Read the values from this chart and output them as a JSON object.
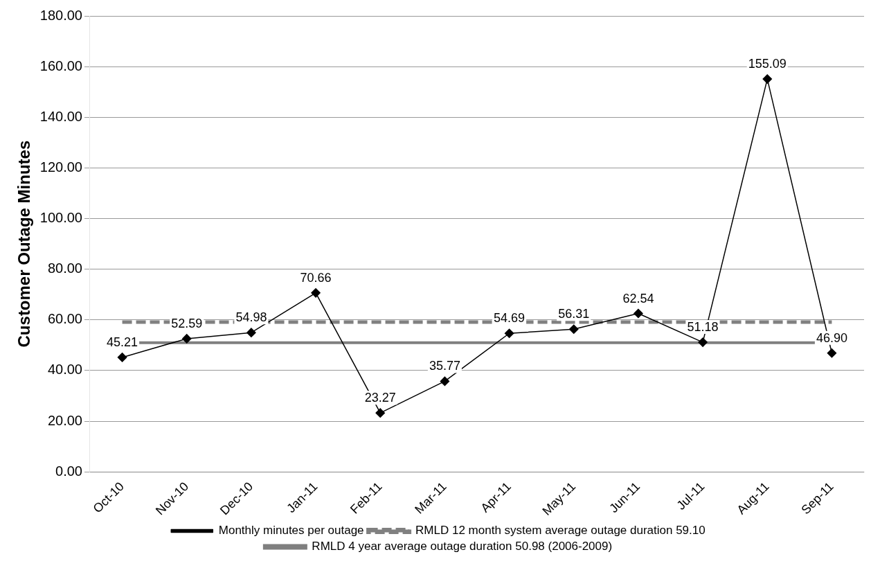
{
  "chart_data": {
    "type": "line",
    "ylabel": "Customer Outage Minutes",
    "categories": [
      "Oct-10",
      "Nov-10",
      "Dec-10",
      "Jan-11",
      "Feb-11",
      "Mar-11",
      "Apr-11",
      "May-11",
      "Jun-11",
      "Jul-11",
      "Aug-11",
      "Sep-11"
    ],
    "series": [
      {
        "name": "Monthly minutes per outage",
        "color": "#000000",
        "values": [
          45.21,
          52.59,
          54.98,
          70.66,
          23.27,
          35.77,
          54.69,
          56.31,
          62.54,
          51.18,
          155.09,
          46.9
        ],
        "value_labels": [
          "45.21",
          "52.59",
          "54.98",
          "70.66",
          "23.27",
          "35.77",
          "54.69",
          "56.31",
          "62.54",
          "51.18",
          "155.09",
          "46.90"
        ]
      }
    ],
    "ref_lines": [
      {
        "axis": "y",
        "value": 59.1,
        "label": "RMLD 12 month system average outage duration 59.10",
        "color": "#808080",
        "line_style": "dashed"
      },
      {
        "axis": "y",
        "value": 50.98,
        "label": "RMLD 4 year average outage duration 50.98 (2006-2009)",
        "color": "#7f7f7f",
        "line_style": "solid"
      }
    ],
    "ylim": [
      0,
      180
    ],
    "yticks": [
      {
        "value": 0,
        "label": "0.00"
      },
      {
        "value": 20,
        "label": "20.00"
      },
      {
        "value": 40,
        "label": "40.00"
      },
      {
        "value": 60,
        "label": "60.00"
      },
      {
        "value": 80,
        "label": "80.00"
      },
      {
        "value": 100,
        "label": "100.00"
      },
      {
        "value": 120,
        "label": "120.00"
      },
      {
        "value": 140,
        "label": "140.00"
      },
      {
        "value": 160,
        "label": "160.00"
      },
      {
        "value": 180,
        "label": "180.00"
      }
    ],
    "grid": "y",
    "legend": "bottom",
    "marker": "diamond",
    "line_style": "solid"
  }
}
